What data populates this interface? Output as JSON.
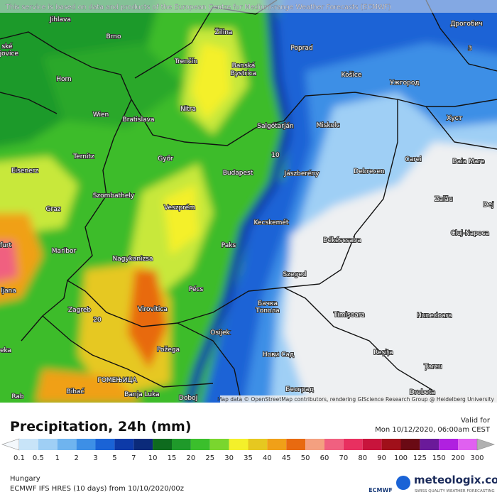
{
  "banner": "This service is based on data and products of the European Centre for Medium-range Weather Forecasts (ECMWF)",
  "attribution": "Map data © OpenStreetMap contributors, rendering GIScience Research Group @ Heidelberg University",
  "cities": [
    "Jihlava",
    "Brno",
    "Žilina",
    "Poprad",
    "Дрогобич",
    "ské",
    "ějovice",
    "Horn",
    "Trenčín",
    "Banská",
    "Bystrica",
    "Košice",
    "Ужгород",
    "Wien",
    "Bratislava",
    "Nitra",
    "Salgótarján",
    "Miskolc",
    "Хуст",
    "Ternitz",
    "Győr",
    "Carei",
    "Baia Mare",
    "Eisenerz",
    "Budapest",
    "Jászberény",
    "Debrecen",
    "Szombathely",
    "Veszprém",
    "Zalău",
    "Graz",
    "Dej",
    "Kecskemét",
    "Cluj-Napoca",
    "furt",
    "Maribor",
    "Békéscsaba",
    "Paks",
    "Nagykanizsa",
    "Szeged",
    "ljana",
    "Pécs",
    "Zagreb",
    "Virovitica",
    "Бачка",
    "Топола",
    "Timișoara",
    "Hunedoara",
    "Osijek",
    "Požega",
    "Нови Сад",
    "Reșița",
    "Țarcu",
    "ГОМЕЊИЦА",
    "Bihać",
    "Banja Luka",
    "Doboj",
    "Београд",
    "Drobeta",
    "Rab",
    "eka",
    "20",
    "10",
    "3"
  ],
  "legend": {
    "title": "Precipitation, 24h (mm)",
    "levels": [
      "0.1",
      "0.5",
      "1",
      "2",
      "3",
      "5",
      "7",
      "10",
      "15",
      "20",
      "25",
      "30",
      "35",
      "40",
      "45",
      "50",
      "60",
      "70",
      "80",
      "90",
      "100",
      "125",
      "150",
      "200",
      "300"
    ],
    "colors": [
      "#f4f8fc",
      "#c8e4f8",
      "#9fcff5",
      "#6fb4ef",
      "#3d8fe6",
      "#1a63d6",
      "#0d3aa8",
      "#0b2a7a",
      "#0e6b1e",
      "#1f9a2a",
      "#3bbf2c",
      "#7ad62e",
      "#f4f02a",
      "#e6c820",
      "#f0a018",
      "#e86a10",
      "#f4a080",
      "#f06080",
      "#e83060",
      "#c8143c",
      "#a0101a",
      "#6a0a14",
      "#6a1a9a",
      "#b020e0",
      "#e060f0",
      "#f0b0f0",
      "#b0b0b0"
    ]
  },
  "footer": {
    "valid_label": "Valid for",
    "valid_time": "Mon 10/12/2020, 06:00am CEST",
    "region": "Hungary",
    "model_run": "ECMWF IFS HRES (10 days) from 10/10/2020/00z",
    "ecmwf": "ECMWF",
    "brand": "meteologix.com",
    "tagline": "SWISS QUALITY WEATHER FORECASTING"
  }
}
